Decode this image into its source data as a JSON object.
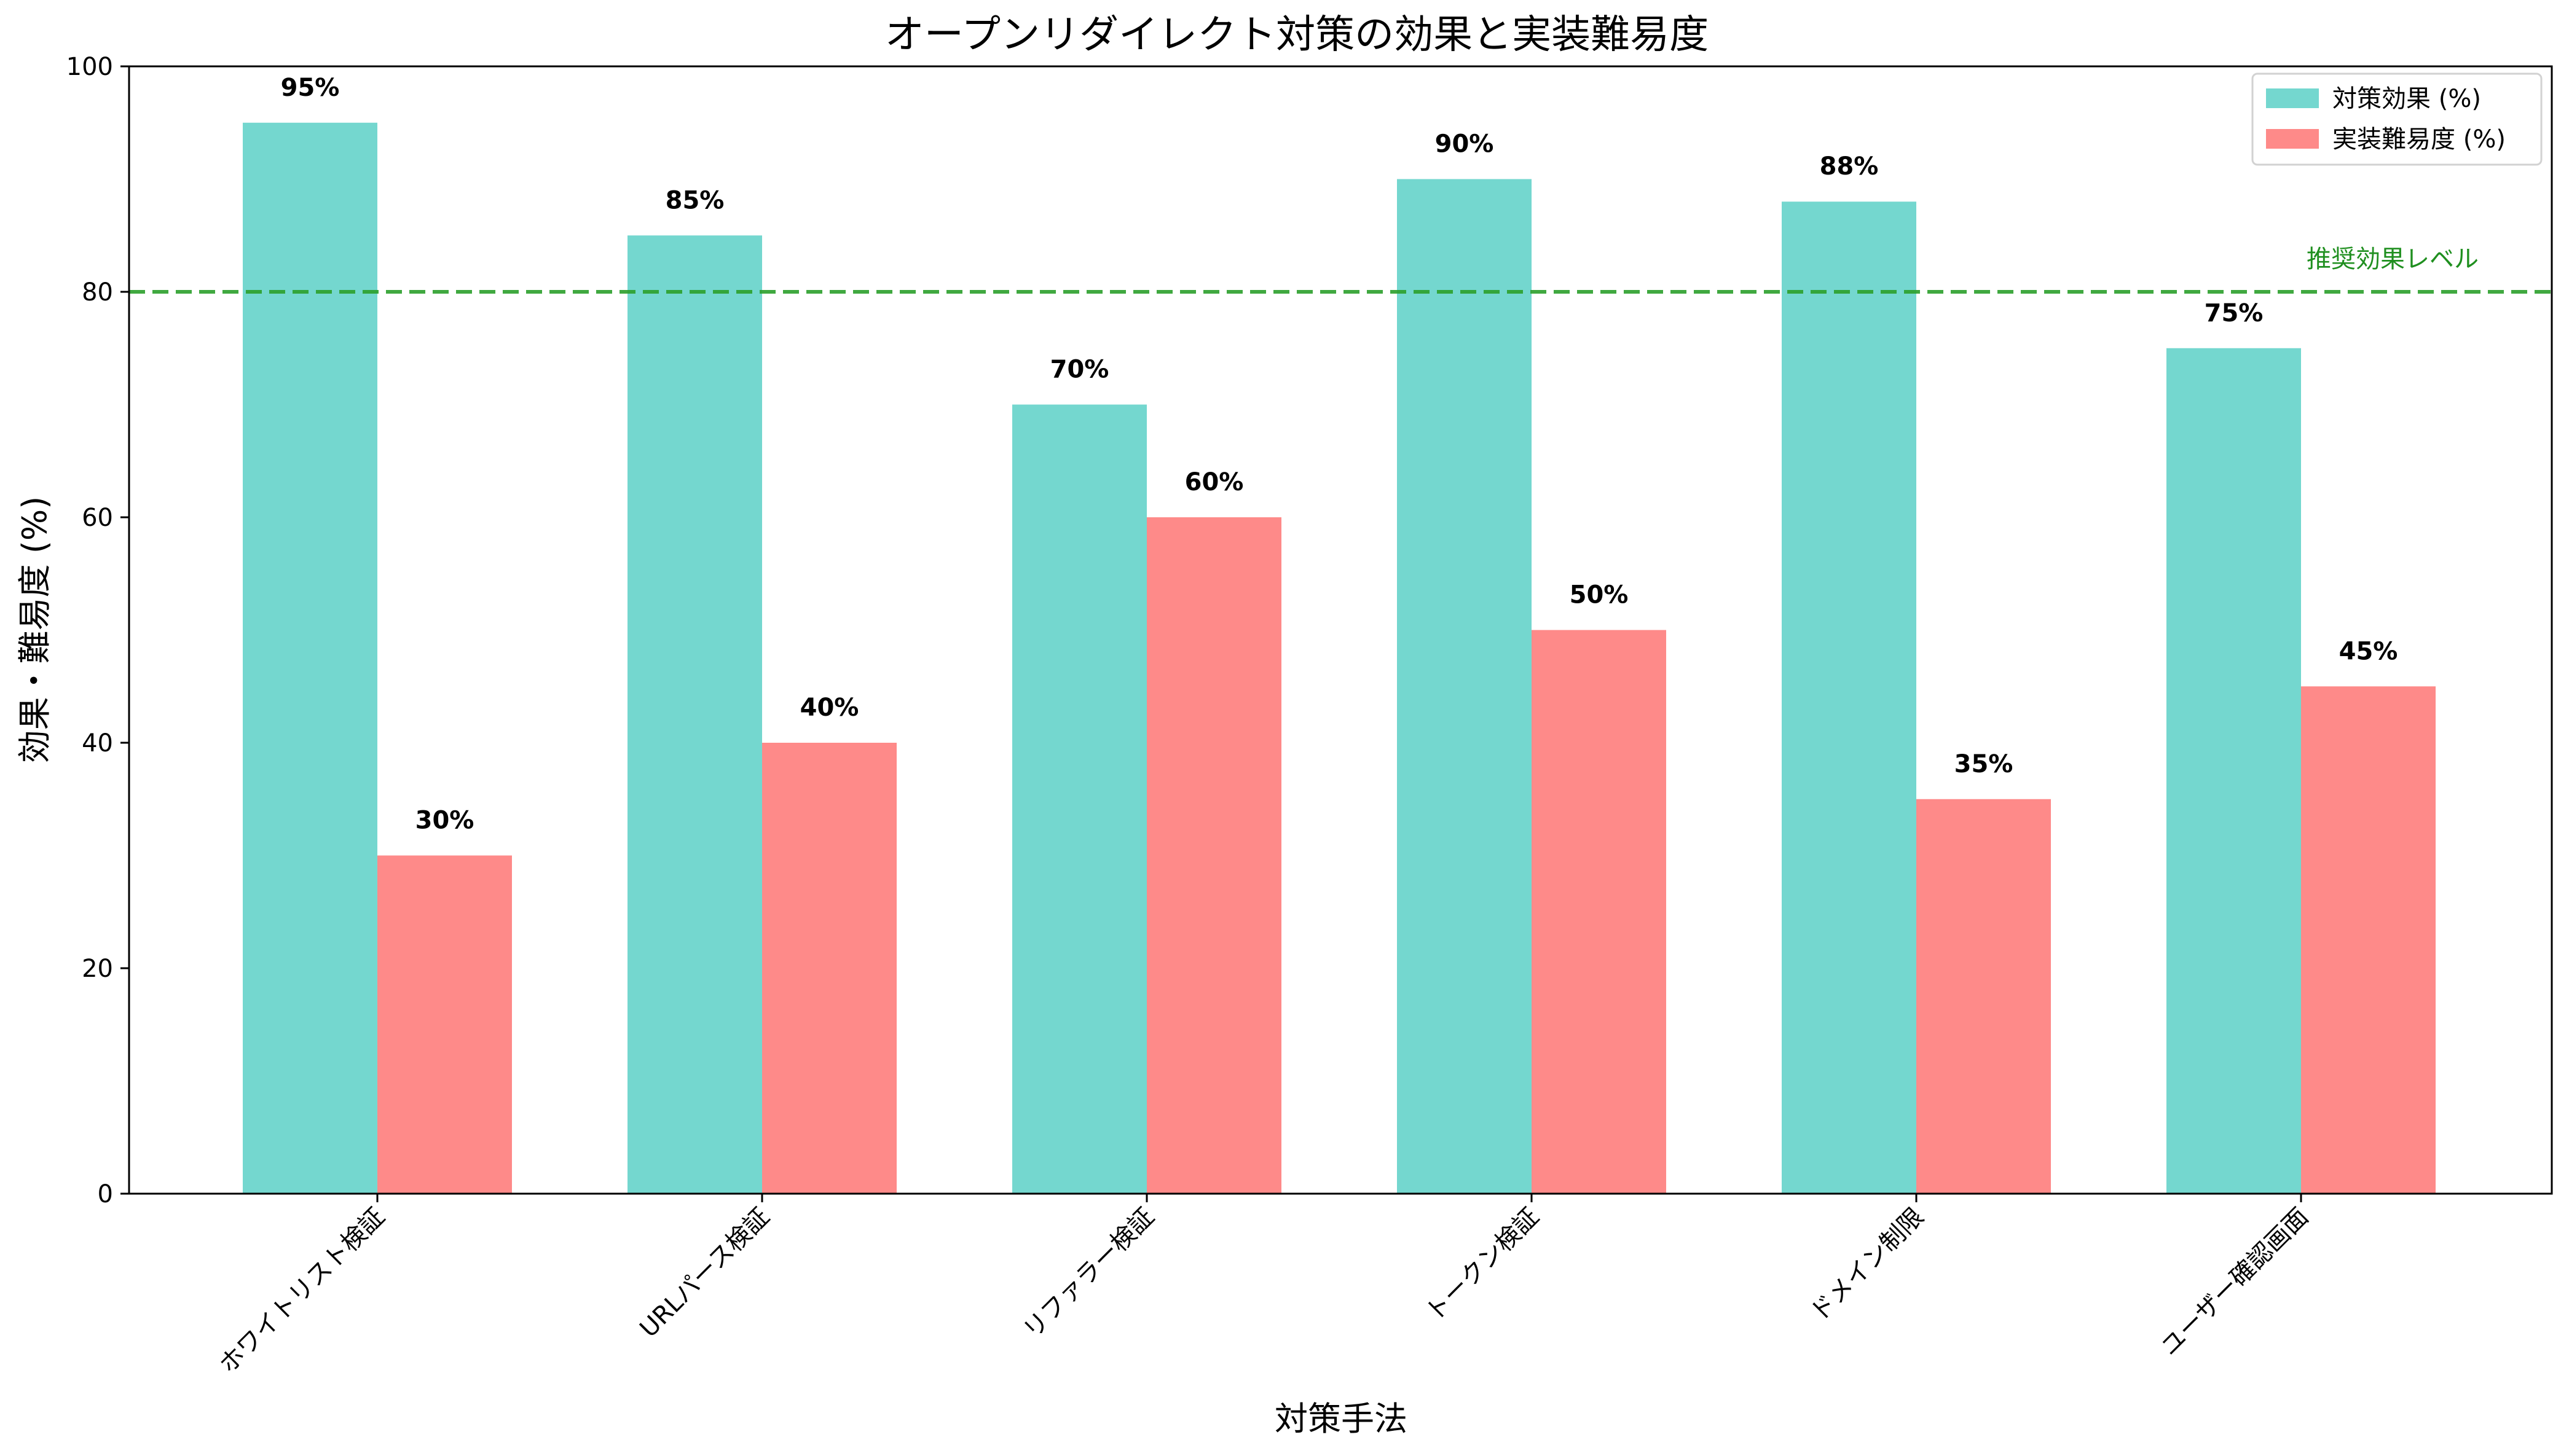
{
  "chart_data": {
    "type": "bar",
    "title": "オープンリダイレクト対策の効果と実装難易度",
    "xlabel": "対策手法",
    "ylabel": "効果・難易度 (%)",
    "ylim": [
      0,
      100
    ],
    "yticks": [
      0,
      20,
      40,
      60,
      80,
      100
    ],
    "categories": [
      "ホワイトリスト検証",
      "URLパース検証",
      "リファラー検証",
      "トークン検証",
      "ドメイン制限",
      "ユーザー確認画面"
    ],
    "series": [
      {
        "name": "対策効果 (%)",
        "values": [
          95,
          85,
          70,
          90,
          88,
          75
        ],
        "color": "#74d7cf"
      },
      {
        "name": "実装難易度 (%)",
        "values": [
          30,
          40,
          60,
          50,
          35,
          45
        ],
        "color": "#fe8a89"
      }
    ],
    "value_labels": [
      [
        "95%",
        "85%",
        "70%",
        "90%",
        "88%",
        "75%"
      ],
      [
        "30%",
        "40%",
        "60%",
        "50%",
        "35%",
        "45%"
      ]
    ],
    "reference_line": {
      "value": 80,
      "label": "推奨効果レベル",
      "color": "#2ca02c",
      "style": "dashed"
    },
    "legend_position": "top-right",
    "grid": false
  }
}
